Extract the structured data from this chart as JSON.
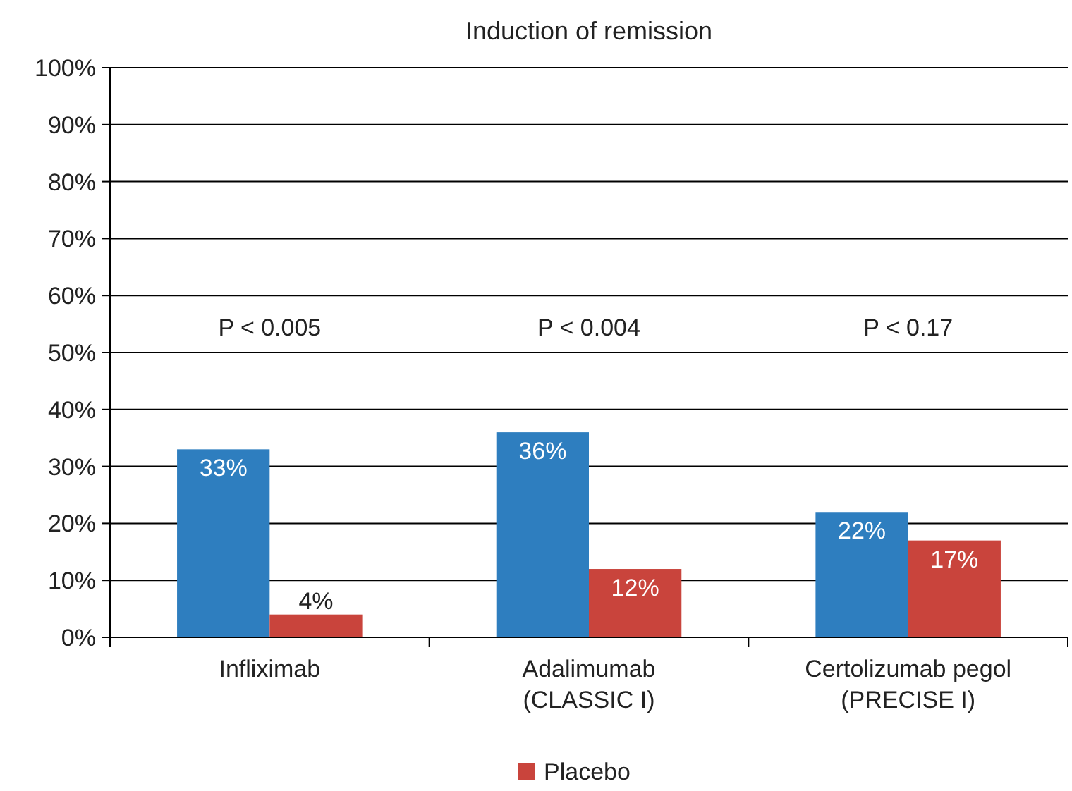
{
  "chart_data": {
    "type": "bar",
    "title": "Induction of remission",
    "categories": [
      "Infliximab",
      "Adalimumab\n(CLASSIC I)",
      "Certolizumab pegol\n(PRECISE I)"
    ],
    "series": [
      {
        "color": "#2e7ebf",
        "values": [
          33,
          36,
          22
        ],
        "value_labels": [
          "33%",
          "36%",
          "22%"
        ]
      },
      {
        "name": "Placebo",
        "color": "#c9443c",
        "values": [
          4,
          12,
          17
        ],
        "value_labels": [
          "4%",
          "12%",
          "17%"
        ]
      }
    ],
    "ylim": [
      0,
      100
    ],
    "yticks": [
      {
        "value": 0,
        "label": "0%"
      },
      {
        "value": 10,
        "label": "10%"
      },
      {
        "value": 20,
        "label": "20%"
      },
      {
        "value": 30,
        "label": "30%"
      },
      {
        "value": 40,
        "label": "40%"
      },
      {
        "value": 50,
        "label": "50%"
      },
      {
        "value": 60,
        "label": "60%"
      },
      {
        "value": 70,
        "label": "70%"
      },
      {
        "value": 80,
        "label": "80%"
      },
      {
        "value": 90,
        "label": "90%"
      },
      {
        "value": 100,
        "label": "100%"
      }
    ],
    "grid": "y",
    "legend": "bottom",
    "annotations": [
      "P < 0.005",
      "P < 0.004",
      "P < 0.17"
    ]
  }
}
